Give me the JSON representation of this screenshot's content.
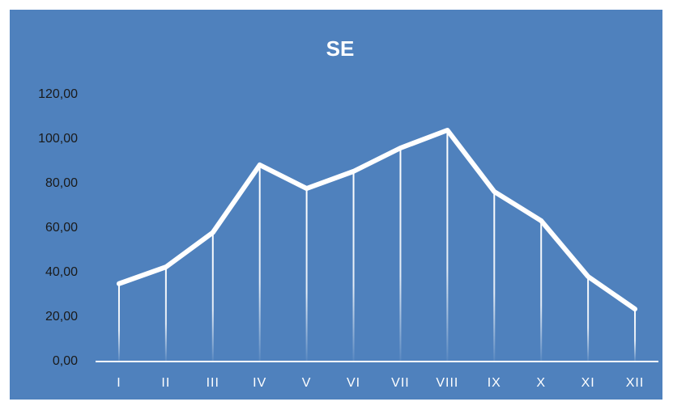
{
  "chart_data": {
    "type": "line",
    "title": "SE",
    "categories": [
      "I",
      "II",
      "III",
      "IV",
      "V",
      "VI",
      "VII",
      "VIII",
      "IX",
      "X",
      "XI",
      "XII"
    ],
    "values": [
      35,
      42.5,
      58,
      88.4,
      77.8,
      85.5,
      96,
      104,
      76.4,
      63.3,
      38.2,
      23.6
    ],
    "color": "#ffffff",
    "ylim": [
      0,
      120
    ],
    "yticks": [
      {
        "value": 0,
        "label": "0,00"
      },
      {
        "value": 20,
        "label": "20,00"
      },
      {
        "value": 40,
        "label": "40,00"
      },
      {
        "value": 60,
        "label": "60,00"
      },
      {
        "value": 80,
        "label": "80,00"
      },
      {
        "value": 100,
        "label": "100,00"
      },
      {
        "value": 120,
        "label": "120,00"
      }
    ],
    "grid": false,
    "drop_lines": true
  }
}
